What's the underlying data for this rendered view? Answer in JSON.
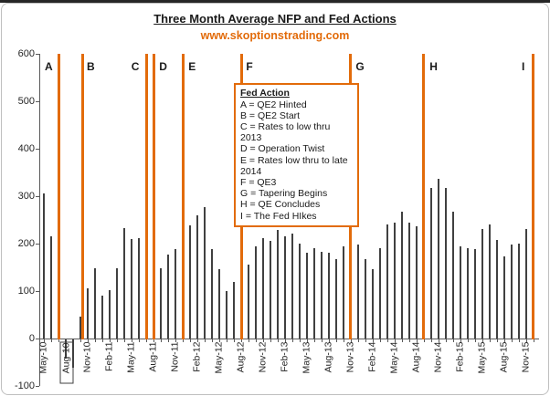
{
  "page": {
    "title": "Three Month Average NFP and Fed Actions",
    "subtitle": "www.skoptionstrading.com"
  },
  "colors": {
    "accent_orange": "#E26B0A",
    "bar": "#404040",
    "axis": "#595959"
  },
  "legend": {
    "heading": "Fed Action",
    "items": [
      "A = QE2  Hinted",
      "B = QE2 Start",
      "C = Rates to low thru 2013",
      "D = Operation Twist",
      "E = Rates low thru to late 2014",
      "F  = QE3",
      "G = Tapering Begins",
      "H = QE Concludes",
      "I = The Fed HIkes"
    ]
  },
  "chart_data": {
    "type": "bar",
    "title": "Three Month Average NFP and Fed Actions",
    "subtitle": "www.skoptionstrading.com",
    "ylim": [
      -100,
      600
    ],
    "y_ticks": [
      600,
      500,
      400,
      300,
      200,
      100,
      0,
      -100
    ],
    "grid": false,
    "bar_color": "#404040",
    "x": [
      "May-10",
      "Jun-10",
      "Jul-10",
      "Aug-10",
      "Sep-10",
      "Oct-10",
      "Nov-10",
      "Dec-10",
      "Jan-11",
      "Feb-11",
      "Mar-11",
      "Apr-11",
      "May-11",
      "Jun-11",
      "Jul-11",
      "Aug-11",
      "Sep-11",
      "Oct-11",
      "Nov-11",
      "Dec-11",
      "Jan-12",
      "Feb-12",
      "Mar-12",
      "Apr-12",
      "May-12",
      "Jun-12",
      "Jul-12",
      "Aug-12",
      "Sep-12",
      "Oct-12",
      "Nov-12",
      "Dec-12",
      "Jan-13",
      "Feb-13",
      "Mar-13",
      "Apr-13",
      "May-13",
      "Jun-13",
      "Jul-13",
      "Aug-13",
      "Sep-13",
      "Oct-13",
      "Nov-13",
      "Dec-13",
      "Jan-14",
      "Feb-14",
      "Mar-14",
      "Apr-14",
      "May-14",
      "Jun-14",
      "Jul-14",
      "Aug-14",
      "Sep-14",
      "Oct-14",
      "Nov-14",
      "Dec-14",
      "Jan-15",
      "Feb-15",
      "Mar-15",
      "Apr-15",
      "May-15",
      "Jun-15",
      "Jul-15",
      "Aug-15",
      "Sep-15",
      "Oct-15",
      "Nov-15",
      "Dec-15"
    ],
    "values": [
      306,
      215,
      110,
      -40,
      -60,
      46,
      105,
      148,
      90,
      101,
      148,
      233,
      210,
      212,
      140,
      147,
      148,
      177,
      188,
      181,
      238,
      260,
      276,
      188,
      146,
      100,
      119,
      158,
      155,
      195,
      212,
      206,
      228,
      215,
      222,
      200,
      180,
      190,
      182,
      180,
      168,
      195,
      223,
      198,
      167,
      146,
      190,
      241,
      244,
      267,
      245,
      237,
      239,
      318,
      337,
      318,
      267,
      194,
      190,
      188,
      230,
      241,
      207,
      174,
      198,
      200,
      230,
      285
    ],
    "x_tick_labels": [
      "May-10",
      "Aug-10",
      "Nov-10",
      "Feb-11",
      "May-11",
      "Aug-11",
      "Nov-11",
      "Feb-12",
      "May-12",
      "Aug-12",
      "Nov-12",
      "Feb-13",
      "May-13",
      "Aug-13",
      "Nov-13",
      "Feb-14",
      "May-14",
      "Aug-14",
      "Nov-14",
      "Feb-15",
      "May-15",
      "Aug-15",
      "Nov-15"
    ],
    "boxed_x_label": "Aug-10",
    "fed_actions": [
      {
        "letter": "A",
        "description": "QE2 Hinted",
        "line_month_index": 2.1,
        "letter_month_index": 0.75
      },
      {
        "letter": "B",
        "description": "QE2 Start",
        "line_month_index": 5.25,
        "letter_month_index": 6.5
      },
      {
        "letter": "C",
        "description": "Rates to low thru 2013",
        "line_month_index": 14.1,
        "letter_month_index": 12.6
      },
      {
        "letter": "D",
        "description": "Operation Twist",
        "line_month_index": 15.1,
        "letter_month_index": 16.4
      },
      {
        "letter": "E",
        "description": "Rates low thru to late 2014",
        "line_month_index": 19.0,
        "letter_month_index": 20.4
      },
      {
        "letter": "F",
        "description": "QE3",
        "line_month_index": 27.0,
        "letter_month_index": 28.3
      },
      {
        "letter": "G",
        "description": "Tapering Begins",
        "line_month_index": 41.9,
        "letter_month_index": 43.3
      },
      {
        "letter": "H",
        "description": "QE Concludes",
        "line_month_index": 51.9,
        "letter_month_index": 53.4
      },
      {
        "letter": "I",
        "description": "The Fed HIkes",
        "line_month_index": 66.9,
        "letter_month_index": 66.0
      }
    ]
  }
}
